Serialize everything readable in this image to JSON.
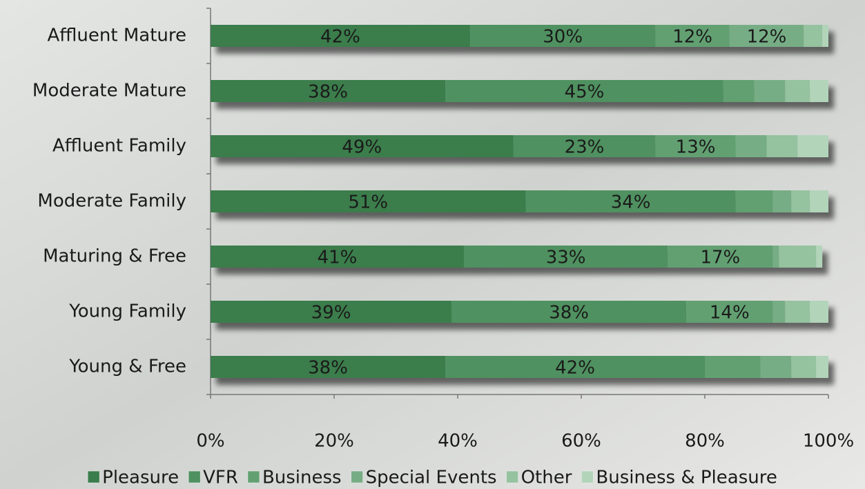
{
  "chart_data": {
    "type": "stacked-bar-horizontal",
    "categories": [
      "Affluent Mature",
      "Moderate Mature",
      "Affluent Family",
      "Moderate Family",
      "Maturing & Free",
      "Young Family",
      "Young & Free"
    ],
    "series": [
      {
        "name": "Pleasure",
        "color": "#3a7d4c",
        "values": [
          42,
          38,
          49,
          51,
          41,
          39,
          38
        ],
        "value_labels": [
          "42%",
          "38%",
          "49%",
          "51%",
          "41%",
          "39%",
          "38%"
        ]
      },
      {
        "name": "VFR",
        "color": "#4f9161",
        "values": [
          30,
          45,
          23,
          34,
          33,
          38,
          42
        ],
        "value_labels": [
          "30%",
          "45%",
          "23%",
          "34%",
          "33%",
          "38%",
          "42%"
        ]
      },
      {
        "name": "Business",
        "color": "#62a072",
        "values": [
          12,
          5,
          13,
          6,
          17,
          14,
          9
        ],
        "value_labels": [
          "12%",
          null,
          "13%",
          null,
          "17%",
          "14%",
          null
        ]
      },
      {
        "name": "Special Events",
        "color": "#77ad85",
        "values": [
          12,
          5,
          5,
          3,
          1,
          2,
          5
        ],
        "value_labels": [
          "12%",
          null,
          null,
          null,
          null,
          null,
          null
        ]
      },
      {
        "name": "Other",
        "color": "#95c29f",
        "values": [
          3,
          4,
          5,
          3,
          6,
          4,
          4
        ]
      },
      {
        "name": "Business & Pleasure",
        "color": "#b2d4b9",
        "values": [
          1,
          3,
          5,
          3,
          1,
          3,
          2
        ]
      }
    ],
    "xlim": [
      0,
      100
    ],
    "xticks": [
      {
        "value": 0,
        "label": "0%"
      },
      {
        "value": 20,
        "label": "20%"
      },
      {
        "value": 40,
        "label": "40%"
      },
      {
        "value": 60,
        "label": "60%"
      },
      {
        "value": 80,
        "label": "80%"
      },
      {
        "value": 100,
        "label": "100%"
      }
    ],
    "legend": "bottom"
  }
}
